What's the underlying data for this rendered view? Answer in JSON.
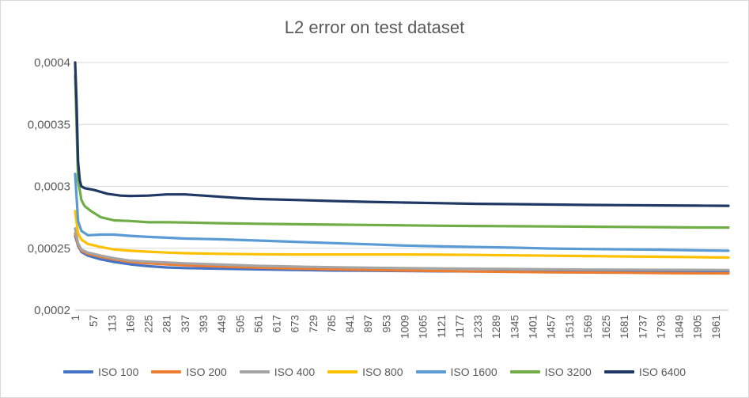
{
  "chart_data": {
    "type": "line",
    "title": "L2 error on test dataset",
    "xlabel": "",
    "ylabel": "",
    "ylim": [
      0.0002,
      0.0004
    ],
    "y_ticks": [
      {
        "value": 0.0002,
        "label": "0,0002"
      },
      {
        "value": 0.00025,
        "label": "0,00025"
      },
      {
        "value": 0.0003,
        "label": "0,0003"
      },
      {
        "value": 0.00035,
        "label": "0,00035"
      },
      {
        "value": 0.0004,
        "label": "0,0004"
      }
    ],
    "xlim": [
      1,
      2000
    ],
    "x_ticks": [
      1,
      57,
      113,
      169,
      225,
      281,
      337,
      393,
      449,
      505,
      561,
      617,
      673,
      729,
      785,
      841,
      897,
      953,
      1009,
      1065,
      1121,
      1177,
      1233,
      1289,
      1345,
      1401,
      1457,
      1513,
      1569,
      1625,
      1681,
      1737,
      1793,
      1849,
      1905,
      1961
    ],
    "grid": "horizontal",
    "legend_position": "bottom",
    "series": [
      {
        "name": "ISO 100",
        "color": "#4472c4",
        "x": [
          1,
          10,
          20,
          40,
          80,
          120,
          170,
          225,
          281,
          337,
          449,
          561,
          673,
          785,
          897,
          1009,
          1121,
          1233,
          1345,
          1457,
          1569,
          1681,
          1793,
          1905,
          2000
        ],
        "y": [
          0.00026,
          0.000252,
          0.000247,
          0.000244,
          0.000241,
          0.000239,
          0.000237,
          0.0002355,
          0.0002345,
          0.000234,
          0.0002335,
          0.000233,
          0.0002325,
          0.000232,
          0.0002318,
          0.0002316,
          0.0002314,
          0.0002313,
          0.0002312,
          0.0002311,
          0.000231,
          0.000231,
          0.000231,
          0.000231,
          0.000231
        ]
      },
      {
        "name": "ISO 200",
        "color": "#ed7d31",
        "x": [
          1,
          10,
          20,
          40,
          80,
          120,
          170,
          225,
          281,
          337,
          449,
          561,
          673,
          785,
          897,
          1009,
          1121,
          1233,
          1345,
          1457,
          1569,
          1681,
          1793,
          1905,
          2000
        ],
        "y": [
          0.000262,
          0.000253,
          0.000248,
          0.0002455,
          0.000243,
          0.000241,
          0.000239,
          0.0002378,
          0.000237,
          0.0002362,
          0.0002352,
          0.0002343,
          0.0002336,
          0.000233,
          0.0002325,
          0.000232,
          0.0002316,
          0.0002312,
          0.0002309,
          0.0002306,
          0.0002304,
          0.0002302,
          0.00023,
          0.0002298,
          0.0002297
        ]
      },
      {
        "name": "ISO 400",
        "color": "#a5a5a5",
        "x": [
          1,
          10,
          20,
          40,
          80,
          120,
          170,
          225,
          281,
          337,
          449,
          561,
          673,
          785,
          897,
          1009,
          1121,
          1233,
          1345,
          1457,
          1569,
          1681,
          1793,
          1905,
          2000
        ],
        "y": [
          0.000266,
          0.000254,
          0.000249,
          0.0002465,
          0.000244,
          0.000242,
          0.00024,
          0.0002392,
          0.0002385,
          0.0002378,
          0.0002368,
          0.0002358,
          0.0002352,
          0.0002347,
          0.0002343,
          0.0002339,
          0.0002336,
          0.0002334,
          0.0002332,
          0.000233,
          0.0002328,
          0.0002327,
          0.0002326,
          0.0002325,
          0.0002324
        ]
      },
      {
        "name": "ISO 800",
        "color": "#ffc000",
        "x": [
          1,
          10,
          20,
          40,
          80,
          120,
          170,
          225,
          281,
          337,
          449,
          561,
          673,
          785,
          897,
          1009,
          1121,
          1233,
          1345,
          1457,
          1569,
          1681,
          1793,
          1905,
          2000
        ],
        "y": [
          0.00028,
          0.000262,
          0.000257,
          0.0002535,
          0.000251,
          0.000249,
          0.000248,
          0.0002472,
          0.0002465,
          0.000246,
          0.0002455,
          0.0002452,
          0.000245,
          0.000245,
          0.000245,
          0.000245,
          0.0002448,
          0.0002446,
          0.0002443,
          0.000244,
          0.0002437,
          0.0002434,
          0.0002431,
          0.0002428,
          0.0002425
        ]
      },
      {
        "name": "ISO 1600",
        "color": "#5b9bd5",
        "x": [
          1,
          10,
          20,
          40,
          80,
          120,
          170,
          225,
          281,
          337,
          449,
          561,
          673,
          785,
          897,
          1009,
          1121,
          1233,
          1345,
          1457,
          1569,
          1681,
          1793,
          1905,
          2000
        ],
        "y": [
          0.00031,
          0.000272,
          0.000264,
          0.0002605,
          0.000261,
          0.000261,
          0.00026,
          0.0002592,
          0.0002585,
          0.0002578,
          0.0002572,
          0.0002562,
          0.0002552,
          0.0002542,
          0.0002532,
          0.0002522,
          0.0002515,
          0.000251,
          0.0002505,
          0.0002498,
          0.0002494,
          0.0002491,
          0.0002488,
          0.0002483,
          0.000248
        ]
      },
      {
        "name": "ISO 3200",
        "color": "#70ad47",
        "x": [
          1,
          10,
          20,
          30,
          50,
          80,
          120,
          170,
          225,
          281,
          337,
          449,
          561,
          673,
          785,
          897,
          1009,
          1121,
          1233,
          1345,
          1457,
          1569,
          1681,
          1793,
          1905,
          2000
        ],
        "y": [
          0.00039,
          0.000305,
          0.000289,
          0.000284,
          0.00028,
          0.000275,
          0.0002725,
          0.000272,
          0.000271,
          0.000271,
          0.0002708,
          0.0002702,
          0.0002698,
          0.0002694,
          0.0002691,
          0.0002688,
          0.0002685,
          0.0002682,
          0.000268,
          0.0002678,
          0.0002676,
          0.0002674,
          0.0002672,
          0.000267,
          0.0002668,
          0.0002667
        ]
      },
      {
        "name": "ISO 6400",
        "color": "#1f3864",
        "x": [
          1,
          5,
          10,
          15,
          20,
          30,
          60,
          100,
          140,
          169,
          225,
          281,
          337,
          393,
          449,
          505,
          561,
          673,
          785,
          897,
          1009,
          1121,
          1233,
          1345,
          1457,
          1569,
          1681,
          1793,
          1905,
          2000
        ],
        "y": [
          0.0004,
          0.00037,
          0.00032,
          0.000305,
          0.0003,
          0.0002985,
          0.000297,
          0.000294,
          0.0002925,
          0.0002922,
          0.0002925,
          0.0002935,
          0.0002935,
          0.0002925,
          0.0002915,
          0.0002905,
          0.0002898,
          0.000289,
          0.0002882,
          0.0002875,
          0.0002869,
          0.0002864,
          0.0002859,
          0.0002856,
          0.0002853,
          0.000285,
          0.0002848,
          0.0002846,
          0.0002844,
          0.0002843
        ]
      }
    ]
  }
}
